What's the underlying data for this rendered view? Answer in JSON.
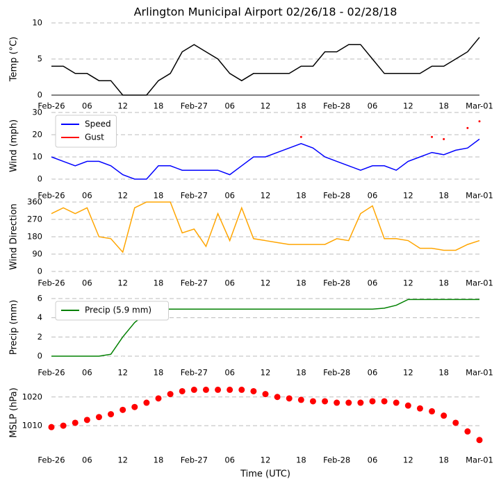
{
  "chart_data": [
    {
      "type": "line",
      "title": "Arlington Municipal Airport 02/26/18 - 02/28/18",
      "ylabel": "Temp (°C)",
      "x": [
        0,
        2,
        4,
        6,
        8,
        10,
        12,
        14,
        16,
        18,
        20,
        22,
        24,
        26,
        28,
        30,
        32,
        34,
        36,
        38,
        40,
        42,
        44,
        46,
        48,
        50,
        52,
        54,
        56,
        58,
        60,
        62,
        64,
        66,
        68,
        70,
        72
      ],
      "series": [
        {
          "name": "Temp",
          "color": "#000000",
          "style": "line",
          "values": [
            4,
            4,
            3,
            3,
            2,
            2,
            0,
            0,
            0,
            2,
            3,
            6,
            7,
            6,
            5,
            3,
            2,
            3,
            3,
            3,
            3,
            4,
            4,
            6,
            6,
            7,
            7,
            5,
            3,
            3,
            3,
            3,
            4,
            4,
            5,
            6,
            8
          ]
        }
      ],
      "xlim": [
        0,
        72
      ],
      "ylim": [
        0,
        10
      ],
      "yticks": [
        0,
        5,
        10
      ],
      "xticks": [
        {
          "value": 0,
          "label": "Feb-26"
        },
        {
          "value": 6,
          "label": "06"
        },
        {
          "value": 12,
          "label": "12"
        },
        {
          "value": 18,
          "label": "18"
        },
        {
          "value": 24,
          "label": "Feb-27"
        },
        {
          "value": 30,
          "label": "06"
        },
        {
          "value": 36,
          "label": "12"
        },
        {
          "value": 42,
          "label": "18"
        },
        {
          "value": 48,
          "label": "Feb-28"
        },
        {
          "value": 54,
          "label": "06"
        },
        {
          "value": 60,
          "label": "12"
        },
        {
          "value": 66,
          "label": "18"
        },
        {
          "value": 72,
          "label": "Mar-01"
        }
      ],
      "grid": true
    },
    {
      "type": "line",
      "ylabel": "Wind (mph)",
      "legend": "upper left",
      "x": [
        0,
        2,
        4,
        6,
        8,
        10,
        12,
        14,
        16,
        18,
        20,
        22,
        24,
        26,
        28,
        30,
        32,
        34,
        36,
        38,
        40,
        42,
        44,
        46,
        48,
        50,
        52,
        54,
        56,
        58,
        60,
        62,
        64,
        66,
        68,
        70,
        72
      ],
      "series": [
        {
          "name": "Speed",
          "color": "#0000ff",
          "style": "line",
          "values": [
            10,
            8,
            6,
            8,
            8,
            6,
            2,
            0,
            0,
            6,
            6,
            4,
            4,
            4,
            4,
            2,
            6,
            10,
            10,
            12,
            14,
            16,
            14,
            10,
            8,
            6,
            4,
            6,
            6,
            4,
            8,
            10,
            12,
            11,
            13,
            14,
            18
          ]
        },
        {
          "name": "Gust",
          "color": "#ff0000",
          "style": "markers",
          "values": [
            null,
            null,
            null,
            null,
            null,
            null,
            null,
            null,
            null,
            null,
            null,
            null,
            null,
            null,
            null,
            null,
            null,
            null,
            null,
            null,
            null,
            19,
            null,
            null,
            null,
            null,
            null,
            null,
            null,
            null,
            null,
            null,
            19,
            18,
            null,
            23,
            26
          ]
        }
      ],
      "xlim": [
        0,
        72
      ],
      "ylim": [
        0,
        30
      ],
      "yticks": [
        0,
        10,
        20,
        30
      ],
      "xticks": [
        {
          "value": 0,
          "label": "Feb-26"
        },
        {
          "value": 6,
          "label": "06"
        },
        {
          "value": 12,
          "label": "12"
        },
        {
          "value": 18,
          "label": "18"
        },
        {
          "value": 24,
          "label": "Feb-27"
        },
        {
          "value": 30,
          "label": "06"
        },
        {
          "value": 36,
          "label": "12"
        },
        {
          "value": 42,
          "label": "18"
        },
        {
          "value": 48,
          "label": "Feb-28"
        },
        {
          "value": 54,
          "label": "06"
        },
        {
          "value": 60,
          "label": "12"
        },
        {
          "value": 66,
          "label": "18"
        },
        {
          "value": 72,
          "label": "Mar-01"
        }
      ],
      "grid": true
    },
    {
      "type": "line",
      "ylabel": "Wind Direction",
      "x": [
        0,
        2,
        4,
        6,
        8,
        10,
        12,
        14,
        16,
        18,
        20,
        22,
        24,
        26,
        28,
        30,
        32,
        34,
        36,
        38,
        40,
        42,
        44,
        46,
        48,
        50,
        52,
        54,
        56,
        58,
        60,
        62,
        64,
        66,
        68,
        70,
        72
      ],
      "series": [
        {
          "name": "Direction",
          "color": "#ffa500",
          "style": "line",
          "values": [
            300,
            330,
            300,
            330,
            180,
            170,
            100,
            330,
            360,
            360,
            360,
            200,
            220,
            130,
            300,
            160,
            330,
            170,
            160,
            150,
            140,
            140,
            140,
            140,
            170,
            160,
            300,
            340,
            170,
            170,
            160,
            120,
            120,
            110,
            110,
            140,
            160
          ]
        }
      ],
      "xlim": [
        0,
        72
      ],
      "ylim": [
        0,
        360
      ],
      "yticks": [
        0,
        90,
        180,
        270,
        360
      ],
      "xticks": [
        {
          "value": 0,
          "label": "Feb-26"
        },
        {
          "value": 6,
          "label": "06"
        },
        {
          "value": 12,
          "label": "12"
        },
        {
          "value": 18,
          "label": "18"
        },
        {
          "value": 24,
          "label": "Feb-27"
        },
        {
          "value": 30,
          "label": "06"
        },
        {
          "value": 36,
          "label": "12"
        },
        {
          "value": 42,
          "label": "18"
        },
        {
          "value": 48,
          "label": "Feb-28"
        },
        {
          "value": 54,
          "label": "06"
        },
        {
          "value": 60,
          "label": "12"
        },
        {
          "value": 66,
          "label": "18"
        },
        {
          "value": 72,
          "label": "Mar-01"
        }
      ],
      "grid": true
    },
    {
      "type": "line",
      "ylabel": "Precip (mm)",
      "legend": "upper left",
      "x": [
        0,
        2,
        4,
        6,
        8,
        10,
        12,
        14,
        16,
        18,
        20,
        22,
        24,
        26,
        28,
        30,
        32,
        34,
        36,
        38,
        40,
        42,
        44,
        46,
        48,
        50,
        52,
        54,
        56,
        58,
        60,
        62,
        64,
        66,
        68,
        70,
        72
      ],
      "series": [
        {
          "name": "Precip (5.9 mm)",
          "color": "#008000",
          "style": "line",
          "values": [
            0,
            0,
            0,
            0,
            0,
            0.2,
            2,
            3.5,
            4.5,
            4.9,
            4.9,
            4.9,
            4.9,
            4.9,
            4.9,
            4.9,
            4.9,
            4.9,
            4.9,
            4.9,
            4.9,
            4.9,
            4.9,
            4.9,
            4.9,
            4.9,
            4.9,
            4.9,
            5,
            5.3,
            5.9,
            5.9,
            5.9,
            5.9,
            5.9,
            5.9,
            5.9
          ]
        }
      ],
      "xlim": [
        0,
        72
      ],
      "ylim": [
        0,
        6
      ],
      "yticks": [
        0,
        2,
        4,
        6
      ],
      "xticks": [
        {
          "value": 0,
          "label": "Feb-26"
        },
        {
          "value": 6,
          "label": "06"
        },
        {
          "value": 12,
          "label": "12"
        },
        {
          "value": 18,
          "label": "18"
        },
        {
          "value": 24,
          "label": "Feb-27"
        },
        {
          "value": 30,
          "label": "06"
        },
        {
          "value": 36,
          "label": "12"
        },
        {
          "value": 42,
          "label": "18"
        },
        {
          "value": 48,
          "label": "Feb-28"
        },
        {
          "value": 54,
          "label": "06"
        },
        {
          "value": 60,
          "label": "12"
        },
        {
          "value": 66,
          "label": "18"
        },
        {
          "value": 72,
          "label": "Mar-01"
        }
      ],
      "grid": true
    },
    {
      "type": "line",
      "ylabel": "MSLP (hPa)",
      "xlabel": "Time (UTC)",
      "x": [
        0,
        2,
        4,
        6,
        8,
        10,
        12,
        14,
        16,
        18,
        20,
        22,
        24,
        26,
        28,
        30,
        32,
        34,
        36,
        38,
        40,
        42,
        44,
        46,
        48,
        50,
        52,
        54,
        56,
        58,
        60,
        62,
        64,
        66,
        68,
        70,
        72
      ],
      "series": [
        {
          "name": "MSLP",
          "color": "#ff0000",
          "style": "markers",
          "values": [
            1009.5,
            1010,
            1011,
            1012,
            1013,
            1014,
            1015.5,
            1016.5,
            1018,
            1019.5,
            1021,
            1022,
            1022.5,
            1022.5,
            1022.5,
            1022.5,
            1022.5,
            1022,
            1021,
            1020,
            1019.5,
            1019,
            1018.5,
            1018.5,
            1018,
            1018,
            1018,
            1018.5,
            1018.5,
            1018,
            1017,
            1016,
            1015,
            1013.5,
            1011,
            1008,
            1005
          ]
        }
      ],
      "xlim": [
        0,
        72
      ],
      "ylim": [
        1003.5,
        1025.5
      ],
      "yticks": [
        1010,
        1020
      ],
      "xticks": [
        {
          "value": 0,
          "label": "Feb-26"
        },
        {
          "value": 6,
          "label": "06"
        },
        {
          "value": 12,
          "label": "12"
        },
        {
          "value": 18,
          "label": "18"
        },
        {
          "value": 24,
          "label": "Feb-27"
        },
        {
          "value": 30,
          "label": "06"
        },
        {
          "value": 36,
          "label": "12"
        },
        {
          "value": 42,
          "label": "18"
        },
        {
          "value": 48,
          "label": "Feb-28"
        },
        {
          "value": 54,
          "label": "06"
        },
        {
          "value": 60,
          "label": "12"
        },
        {
          "value": 66,
          "label": "18"
        },
        {
          "value": 72,
          "label": "Mar-01"
        }
      ],
      "grid": true
    }
  ]
}
